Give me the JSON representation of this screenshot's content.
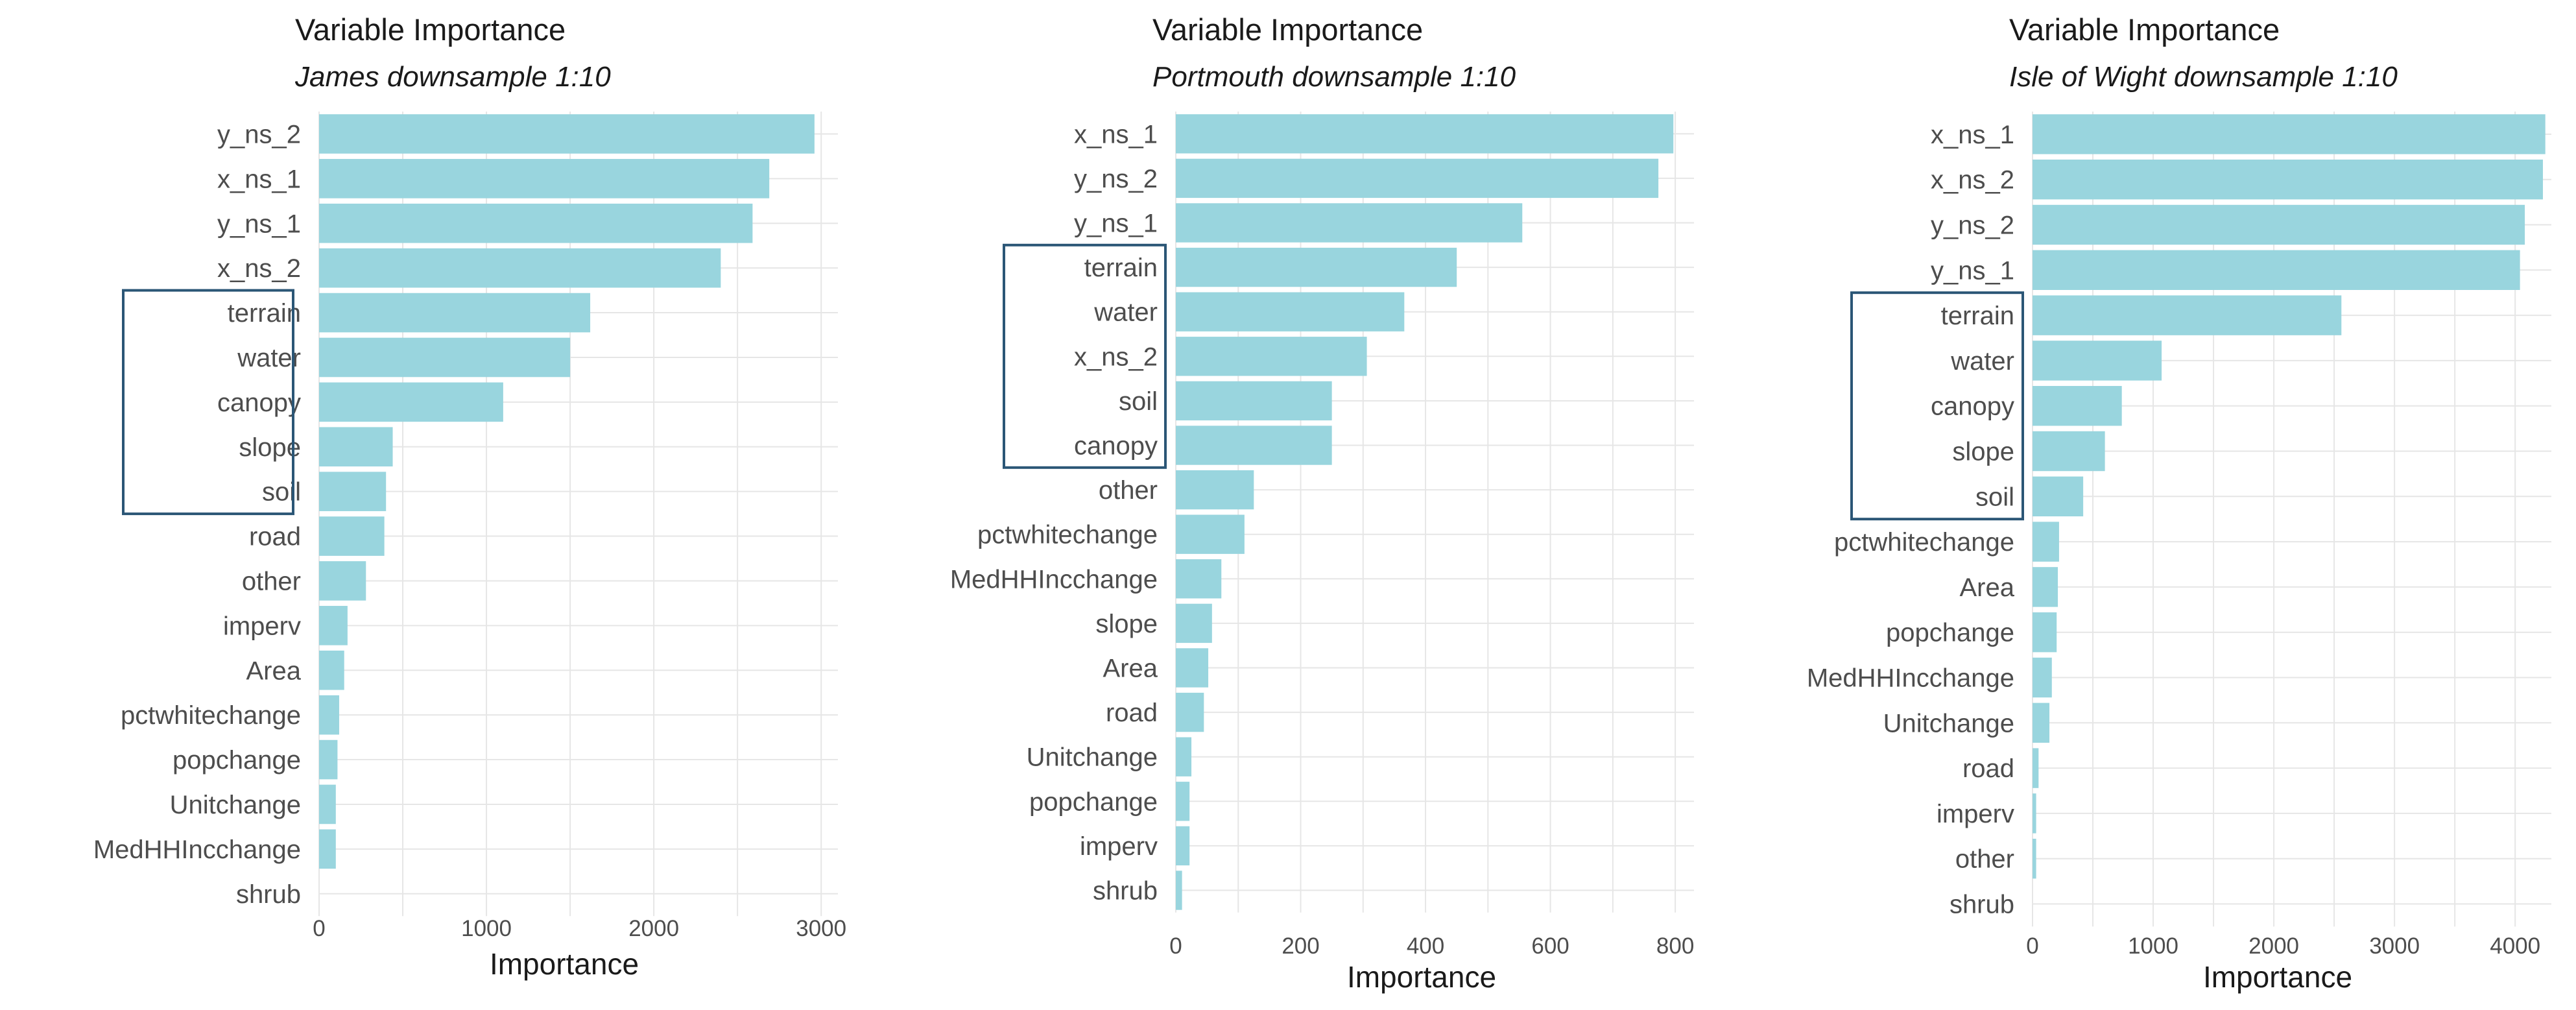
{
  "chart_data": [
    {
      "type": "bar",
      "orientation": "horizontal",
      "title": "Variable Importance",
      "subtitle": "James downsample 1:10",
      "xlabel": "Importance",
      "ylabel": "",
      "xlim": [
        0,
        3100
      ],
      "xticks": [
        0,
        1000,
        2000,
        3000
      ],
      "bar_color": "#99d5de",
      "box_color": "#2b5676",
      "grid": true,
      "categories": [
        "y_ns_2",
        "x_ns_1",
        "y_ns_1",
        "x_ns_2",
        "terrain",
        "water",
        "canopy",
        "slope",
        "soil",
        "road",
        "other",
        "imperv",
        "Area",
        "pctwhitechange",
        "popchange",
        "Unitchange",
        "MedHHIncchange",
        "shrub"
      ],
      "values": [
        2960,
        2690,
        2590,
        2400,
        1620,
        1500,
        1100,
        440,
        400,
        390,
        280,
        170,
        150,
        120,
        110,
        100,
        100,
        0
      ],
      "highlighted": [
        "terrain",
        "water",
        "canopy",
        "slope",
        "soil"
      ]
    },
    {
      "type": "bar",
      "orientation": "horizontal",
      "title": "Variable Importance",
      "subtitle": "Portmouth downsample 1:10",
      "xlabel": "Importance",
      "ylabel": "",
      "xlim": [
        0,
        830
      ],
      "xticks": [
        0,
        200,
        400,
        600,
        800
      ],
      "bar_color": "#99d5de",
      "box_color": "#2b5676",
      "grid": true,
      "categories": [
        "x_ns_1",
        "y_ns_2",
        "y_ns_1",
        "terrain",
        "water",
        "x_ns_2",
        "soil",
        "canopy",
        "other",
        "pctwhitechange",
        "MedHHIncchange",
        "slope",
        "Area",
        "road",
        "Unitchange",
        "popchange",
        "imperv",
        "shrub"
      ],
      "values": [
        797,
        773,
        555,
        450,
        366,
        306,
        250,
        250,
        125,
        110,
        73,
        58,
        52,
        45,
        25,
        22,
        22,
        10
      ],
      "highlighted": [
        "terrain",
        "water",
        "x_ns_2",
        "soil",
        "canopy"
      ]
    },
    {
      "type": "bar",
      "orientation": "horizontal",
      "title": "Variable Importance",
      "subtitle": "Isle of Wight downsample 1:10",
      "xlabel": "Importance",
      "ylabel": "",
      "xlim": [
        0,
        4300
      ],
      "xticks": [
        0,
        1000,
        2000,
        3000,
        4000
      ],
      "bar_color": "#99d5de",
      "box_color": "#2b5676",
      "grid": true,
      "categories": [
        "x_ns_1",
        "x_ns_2",
        "y_ns_2",
        "y_ns_1",
        "terrain",
        "water",
        "canopy",
        "slope",
        "soil",
        "pctwhitechange",
        "Area",
        "popchange",
        "MedHHIncchange",
        "Unitchange",
        "road",
        "imperv",
        "other",
        "shrub"
      ],
      "values": [
        4250,
        4230,
        4080,
        4040,
        2560,
        1070,
        740,
        600,
        420,
        220,
        210,
        200,
        160,
        140,
        50,
        30,
        30,
        0
      ],
      "highlighted": [
        "terrain",
        "water",
        "canopy",
        "slope",
        "soil"
      ]
    }
  ]
}
